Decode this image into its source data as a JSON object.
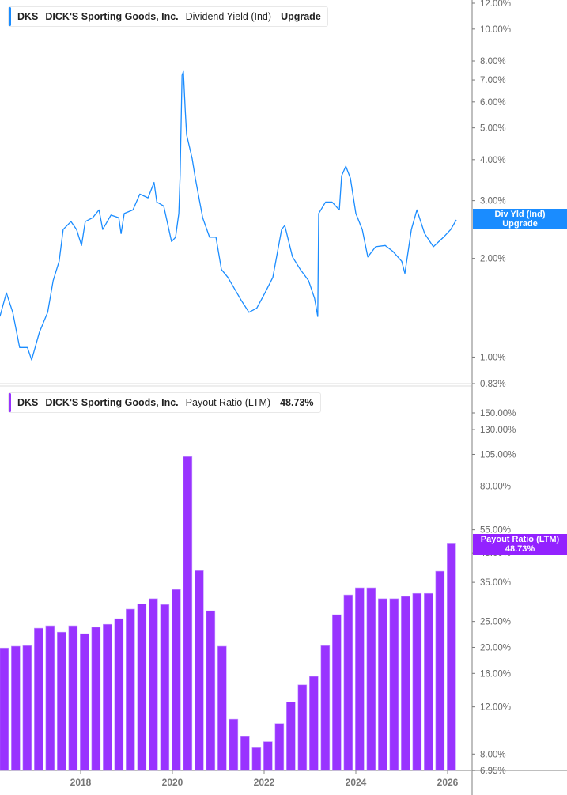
{
  "top_legend": {
    "ticker": "DKS",
    "company": "DICK'S Sporting Goods, Inc.",
    "metric": "Dividend Yield (Ind)",
    "value": "Upgrade",
    "color": "#1a8cff"
  },
  "bottom_legend": {
    "ticker": "DKS",
    "company": "DICK'S Sporting Goods, Inc.",
    "metric": "Payout Ratio (LTM)",
    "value": "48.73%",
    "color": "#9933ff"
  },
  "top_flag": {
    "line1": "Div Yld (Ind)",
    "line2": "Upgrade"
  },
  "bottom_flag": {
    "line1": "Payout Ratio (LTM)",
    "line2": "48.73%"
  },
  "chart_data": [
    {
      "type": "line",
      "name": "Dividend Yield (Ind)",
      "scale": "log",
      "ylim": [
        0.83,
        12
      ],
      "unit": "%",
      "yticks": [
        12,
        10,
        8,
        7,
        6,
        5,
        4,
        3,
        2,
        1,
        0.83
      ],
      "ytick_labels": [
        "12.00%",
        "10.00%",
        "8.00%",
        "7.00%",
        "6.00%",
        "5.00%",
        "4.00%",
        "3.00%",
        "2.00%",
        "1.00%",
        "0.83%"
      ],
      "color": "#1a8cff",
      "points": [
        [
          "2016-03-27",
          1.33
        ],
        [
          "2016-05-18",
          1.57
        ],
        [
          "2016-07-08",
          1.37
        ],
        [
          "2016-09-02",
          1.07
        ],
        [
          "2016-11-03",
          1.07
        ],
        [
          "2016-12-06",
          0.98
        ],
        [
          "2017-02-07",
          1.19
        ],
        [
          "2017-04-12",
          1.37
        ],
        [
          "2017-05-25",
          1.71
        ],
        [
          "2017-07-12",
          1.96
        ],
        [
          "2017-08-14",
          2.45
        ],
        [
          "2017-10-15",
          2.59
        ],
        [
          "2017-11-29",
          2.45
        ],
        [
          "2018-01-08",
          2.19
        ],
        [
          "2018-02-07",
          2.59
        ],
        [
          "2018-04-05",
          2.66
        ],
        [
          "2018-05-25",
          2.81
        ],
        [
          "2018-06-24",
          2.45
        ],
        [
          "2018-08-29",
          2.71
        ],
        [
          "2018-10-30",
          2.66
        ],
        [
          "2018-11-18",
          2.38
        ],
        [
          "2018-12-13",
          2.74
        ],
        [
          "2019-02-21",
          2.81
        ],
        [
          "2019-04-15",
          3.14
        ],
        [
          "2019-06-20",
          3.06
        ],
        [
          "2019-08-07",
          3.41
        ],
        [
          "2019-08-29",
          2.97
        ],
        [
          "2019-10-23",
          2.89
        ],
        [
          "2019-12-24",
          2.25
        ],
        [
          "2020-01-26",
          2.32
        ],
        [
          "2020-02-21",
          2.74
        ],
        [
          "2020-03-02",
          3.6
        ],
        [
          "2020-03-17",
          7.23
        ],
        [
          "2020-03-27",
          7.43
        ],
        [
          "2020-04-12",
          5.63
        ],
        [
          "2020-04-23",
          4.76
        ],
        [
          "2020-06-06",
          4.03
        ],
        [
          "2020-07-01",
          3.51
        ],
        [
          "2020-08-29",
          2.66
        ],
        [
          "2020-10-23",
          2.32
        ],
        [
          "2020-12-13",
          2.32
        ],
        [
          "2021-01-26",
          1.85
        ],
        [
          "2021-03-17",
          1.75
        ],
        [
          "2021-05-11",
          1.61
        ],
        [
          "2021-07-01",
          1.49
        ],
        [
          "2021-09-02",
          1.37
        ],
        [
          "2021-11-03",
          1.41
        ],
        [
          "2022-01-08",
          1.57
        ],
        [
          "2022-03-09",
          1.75
        ],
        [
          "2022-05-18",
          2.45
        ],
        [
          "2022-06-13",
          2.52
        ],
        [
          "2022-08-14",
          2.02
        ],
        [
          "2022-10-15",
          1.85
        ],
        [
          "2022-12-20",
          1.71
        ],
        [
          "2023-02-07",
          1.51
        ],
        [
          "2023-03-02",
          1.33
        ],
        [
          "2023-03-09",
          2.74
        ],
        [
          "2023-05-03",
          2.97
        ],
        [
          "2023-06-24",
          2.97
        ],
        [
          "2023-08-21",
          2.81
        ],
        [
          "2023-09-09",
          3.57
        ],
        [
          "2023-10-12",
          3.82
        ],
        [
          "2023-11-18",
          3.51
        ],
        [
          "2024-01-01",
          2.74
        ],
        [
          "2024-02-21",
          2.45
        ],
        [
          "2024-04-05",
          2.02
        ],
        [
          "2024-06-06",
          2.17
        ],
        [
          "2024-08-21",
          2.19
        ],
        [
          "2024-10-23",
          2.1
        ],
        [
          "2025-01-01",
          1.96
        ],
        [
          "2025-01-26",
          1.8
        ],
        [
          "2025-03-17",
          2.45
        ],
        [
          "2025-04-30",
          2.81
        ],
        [
          "2025-07-01",
          2.38
        ],
        [
          "2025-09-09",
          2.17
        ],
        [
          "2025-11-29",
          2.32
        ],
        [
          "2026-01-26",
          2.45
        ],
        [
          "2026-03-09",
          2.62
        ]
      ]
    },
    {
      "type": "bar",
      "name": "Payout Ratio (LTM)",
      "scale": "log",
      "ylim": [
        6.95,
        150
      ],
      "unit": "%",
      "yticks": [
        150,
        130,
        105,
        80,
        55,
        45,
        35,
        25,
        20,
        16,
        12,
        8,
        6.95
      ],
      "ytick_labels": [
        "150.00%",
        "130.00%",
        "105.00%",
        "80.00%",
        "55.00%",
        "45.00%",
        "35.00%",
        "25.00%",
        "20.00%",
        "16.00%",
        "12.00%",
        "8.00%",
        "6.95%"
      ],
      "color": "#9933ff",
      "categories": [
        "2016-05",
        "2016-08",
        "2016-11",
        "2017-02",
        "2017-05",
        "2017-08",
        "2017-11",
        "2018-02",
        "2018-05",
        "2018-08",
        "2018-11",
        "2019-02",
        "2019-05",
        "2019-08",
        "2019-11",
        "2020-02",
        "2020-05",
        "2020-08",
        "2020-11",
        "2021-02",
        "2021-05",
        "2021-08",
        "2021-11",
        "2022-02",
        "2022-05",
        "2022-08",
        "2022-11",
        "2023-02",
        "2023-05",
        "2023-08",
        "2023-11",
        "2024-02",
        "2024-05",
        "2024-08",
        "2024-11",
        "2025-02",
        "2025-05",
        "2025-08",
        "2025-11",
        "2026-02"
      ],
      "values": [
        19.9,
        20.2,
        20.3,
        23.6,
        24.1,
        22.8,
        24.1,
        22.5,
        23.8,
        24.4,
        25.6,
        27.8,
        29.1,
        30.4,
        28.9,
        32.9,
        103,
        38.7,
        27.4,
        20.2,
        10.8,
        9.3,
        8.5,
        8.9,
        10.4,
        12.5,
        14.5,
        15.6,
        20.3,
        26.5,
        31.4,
        33.4,
        33.4,
        30.4,
        30.4,
        31.0,
        31.8,
        31.8,
        38.5,
        48.73
      ]
    }
  ],
  "x_axis": {
    "ticks": [
      "2018",
      "2020",
      "2022",
      "2024",
      "2026"
    ]
  }
}
